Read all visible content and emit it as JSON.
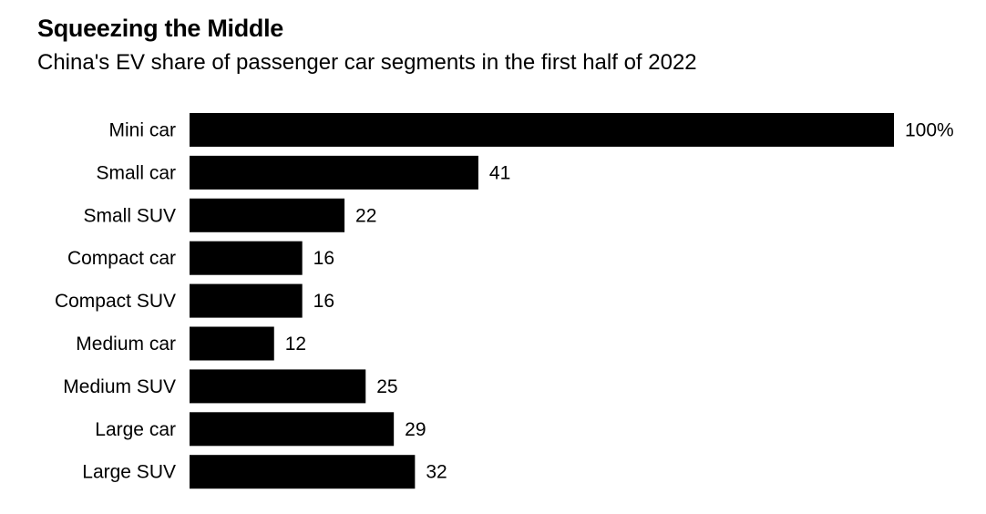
{
  "chart_data": {
    "type": "bar",
    "orientation": "horizontal",
    "title": "Squeezing the Middle",
    "subtitle": "China's EV share of passenger car segments in the first half of 2022",
    "categories": [
      "Mini car",
      "Small car",
      "Small SUV",
      "Compact car",
      "Compact SUV",
      "Medium car",
      "Medium SUV",
      "Large car",
      "Large SUV"
    ],
    "values": [
      100,
      41,
      22,
      16,
      16,
      12,
      25,
      29,
      32
    ],
    "value_labels": [
      "100%",
      "41",
      "22",
      "16",
      "16",
      "12",
      "25",
      "29",
      "32"
    ],
    "xlim": [
      0,
      100
    ],
    "grid": false,
    "bar_color": "#000000"
  }
}
